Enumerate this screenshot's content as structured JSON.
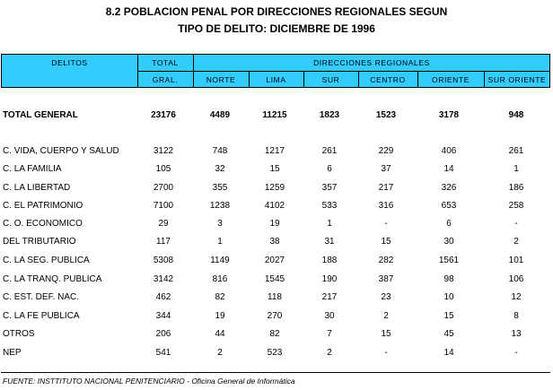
{
  "title_line1": "8.2  POBLACION PENAL POR DIRECCIONES REGIONALES SEGUN",
  "title_line2": "TIPO DE DELITO: DICIEMBRE DE 1996",
  "header": {
    "delitos": "DELITOS",
    "total_top": "TOTAL",
    "total_bottom": "GRAL.",
    "direcciones": "DIRECCIONES  REGIONALES",
    "regions": [
      "NORTE",
      "LIMA",
      "SUR",
      "CENTRO",
      "ORIENTE",
      "SUR ORIENTE"
    ]
  },
  "rows": [
    {
      "label": "TOTAL GENERAL",
      "total": "23176",
      "values": [
        "4489",
        "11215",
        "1823",
        "1523",
        "3178",
        "948"
      ]
    },
    {
      "label": "C. VIDA, CUERPO Y  SALUD",
      "total": "3122",
      "values": [
        "748",
        "1217",
        "261",
        "229",
        "406",
        "261"
      ]
    },
    {
      "label": "C. LA FAMILIA",
      "total": "105",
      "values": [
        "32",
        "15",
        "6",
        "37",
        "14",
        "1"
      ]
    },
    {
      "label": "C. LA LIBERTAD",
      "total": "2700",
      "values": [
        "355",
        "1259",
        "357",
        "217",
        "326",
        "186"
      ]
    },
    {
      "label": "C. EL PATRIMONIO",
      "total": "7100",
      "values": [
        "1238",
        "4102",
        "533",
        "316",
        "653",
        "258"
      ]
    },
    {
      "label": "C. O. ECONOMICO",
      "total": "29",
      "values": [
        "3",
        "19",
        "1",
        "-",
        "6",
        "-"
      ]
    },
    {
      "label": "DEL TRIBUTARIO",
      "total": "117",
      "values": [
        "1",
        "38",
        "31",
        "15",
        "30",
        "2"
      ]
    },
    {
      "label": "C. LA SEG. PUBLICA",
      "total": "5308",
      "values": [
        "1149",
        "2027",
        "188",
        "282",
        "1561",
        "101"
      ]
    },
    {
      "label": "C. LA TRANQ. PUBLICA",
      "total": "3142",
      "values": [
        "816",
        "1545",
        "190",
        "387",
        "98",
        "106"
      ]
    },
    {
      "label": "C. EST. DEF. NAC.",
      "total": "462",
      "values": [
        "82",
        "118",
        "217",
        "23",
        "10",
        "12"
      ]
    },
    {
      "label": "C. LA FE PUBLICA",
      "total": "344",
      "values": [
        "19",
        "270",
        "30",
        "2",
        "15",
        "8"
      ]
    },
    {
      "label": "OTROS",
      "total": "206",
      "values": [
        "44",
        "82",
        "7",
        "15",
        "45",
        "13"
      ]
    },
    {
      "label": "NEP",
      "total": "541",
      "values": [
        "2",
        "523",
        "2",
        "-",
        "14",
        "-"
      ]
    }
  ],
  "footer": "FUENTE:   INSTTITUTO NACIONAL PENITENCIARIO -  Oficina General de Informática",
  "colors": {
    "header_bg": "#33ccff"
  }
}
